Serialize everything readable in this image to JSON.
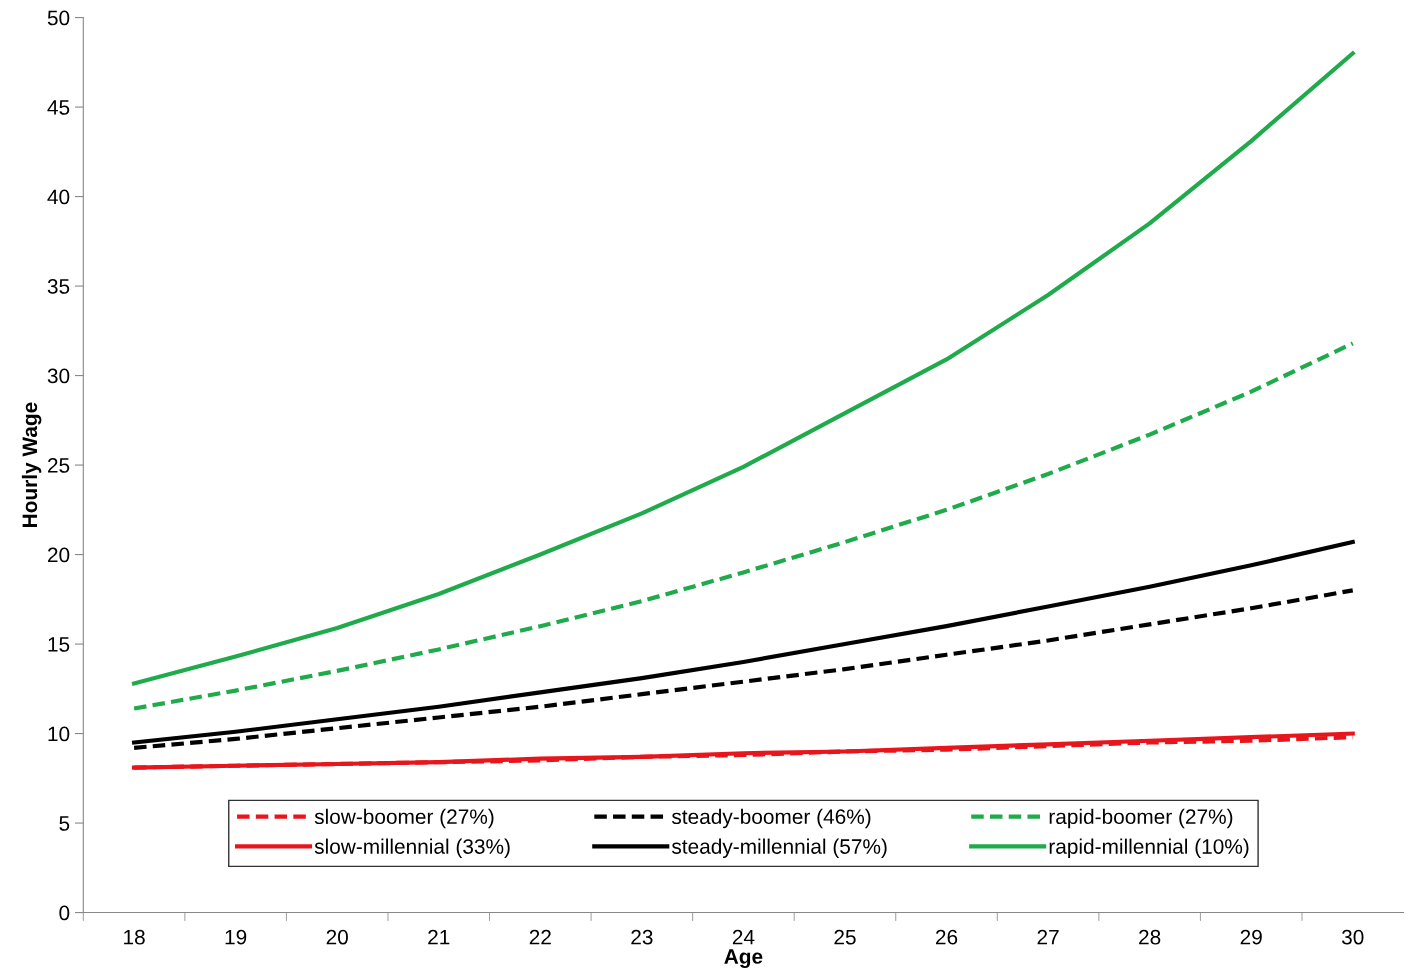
{
  "chart_data": {
    "type": "line",
    "xlabel": "Age",
    "ylabel": "Hourly Wage",
    "categories": [
      "18",
      "19",
      "20",
      "21",
      "22",
      "23",
      "24",
      "25",
      "26",
      "27",
      "28",
      "29",
      "30"
    ],
    "ylim": [
      0,
      50
    ],
    "yticks": [
      0,
      5,
      10,
      15,
      20,
      25,
      30,
      35,
      40,
      45,
      50
    ],
    "grid": false,
    "legend": "bottom",
    "marker": "none",
    "series": [
      {
        "name": "slow-boomer (27%)",
        "color": "#e8161c",
        "line_style": "dashed",
        "values": [
          8.1,
          8.2,
          8.3,
          8.4,
          8.5,
          8.7,
          8.8,
          9.0,
          9.1,
          9.3,
          9.5,
          9.6,
          9.8
        ]
      },
      {
        "name": "steady-boomer (46%)",
        "color": "#000000",
        "line_style": "dashed",
        "values": [
          9.2,
          9.7,
          10.3,
          10.9,
          11.5,
          12.2,
          12.9,
          13.6,
          14.4,
          15.2,
          16.1,
          17.0,
          18.0
        ]
      },
      {
        "name": "rapid-boomer (27%)",
        "color": "#1faa4b",
        "line_style": "dashed",
        "values": [
          11.4,
          12.4,
          13.5,
          14.7,
          16.0,
          17.4,
          19.0,
          20.7,
          22.5,
          24.5,
          26.7,
          29.1,
          31.8
        ]
      },
      {
        "name": "slow-millennial (33%)",
        "color": "#e8161c",
        "line_style": "solid",
        "values": [
          8.1,
          8.2,
          8.3,
          8.4,
          8.6,
          8.7,
          8.9,
          9.0,
          9.2,
          9.4,
          9.6,
          9.8,
          10.0
        ]
      },
      {
        "name": "steady-millennial (57%)",
        "color": "#000000",
        "line_style": "solid",
        "values": [
          9.5,
          10.1,
          10.8,
          11.5,
          12.3,
          13.1,
          14.0,
          15.0,
          16.0,
          17.1,
          18.2,
          19.4,
          20.7
        ]
      },
      {
        "name": "rapid-millennial (10%)",
        "color": "#1faa4b",
        "line_style": "solid",
        "values": [
          12.8,
          14.3,
          15.9,
          17.8,
          20.0,
          22.3,
          24.9,
          27.9,
          30.9,
          34.5,
          38.5,
          43.1,
          48.0
        ]
      }
    ]
  }
}
